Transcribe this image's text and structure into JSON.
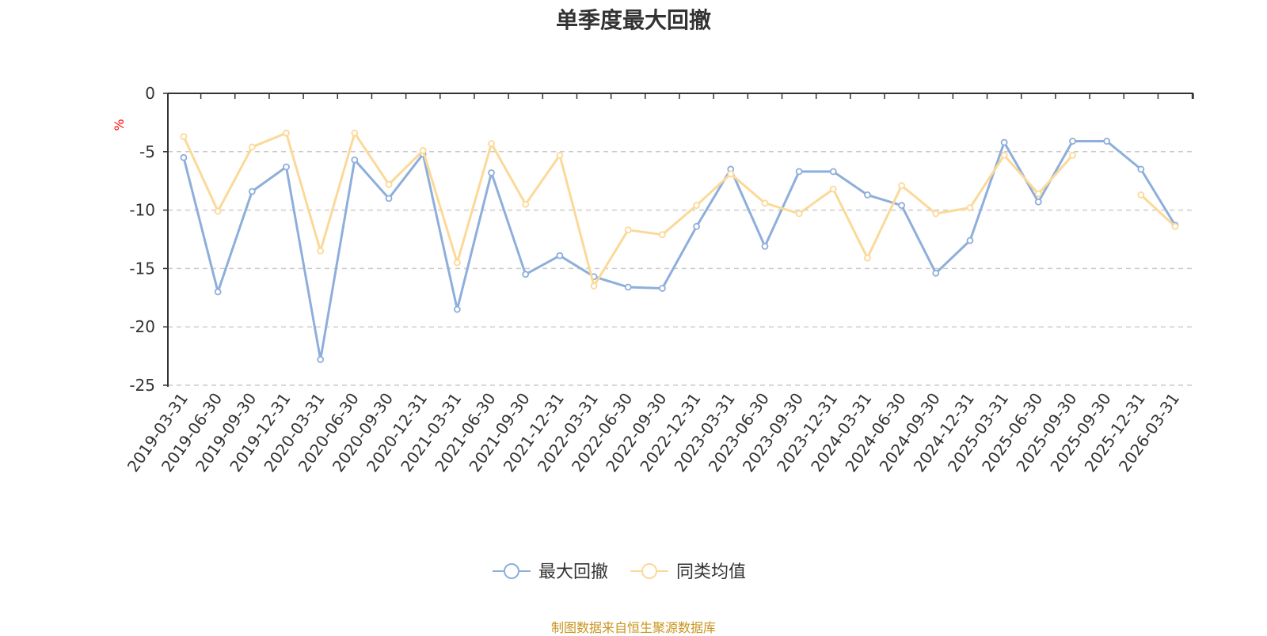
{
  "chart_data": {
    "type": "line",
    "title": "单季度最大回撤",
    "ylabel": "%",
    "xlabel": "",
    "ylim": [
      -25,
      0
    ],
    "yticks": [
      0,
      -5,
      -10,
      -15,
      -20,
      -25
    ],
    "ytick_labels": [
      "0",
      "-5",
      "-10",
      "-15",
      "-20",
      "-25"
    ],
    "grid": "horizontal dashed",
    "legend_position": "bottom-center",
    "categories": [
      "2019-03-31",
      "2019-06-30",
      "2019-09-30",
      "2019-12-31",
      "2020-03-31",
      "2020-06-30",
      "2020-09-30",
      "2020-12-31",
      "2021-03-31",
      "2021-06-30",
      "2021-09-30",
      "2021-12-31",
      "2022-03-31",
      "2022-06-30",
      "2022-09-30",
      "2022-12-31",
      "2023-03-31",
      "2023-06-30",
      "2023-09-30",
      "2023-12-31",
      "2024-03-31",
      "2024-06-30",
      "2024-09-30",
      "2024-12-31",
      "2025-03-31",
      "2025-06-30",
      "2025-09-30",
      "2025-09-30",
      "2025-12-31",
      "2026-03-31"
    ],
    "series": [
      {
        "name": "最大回撤",
        "color": "#8eaedb",
        "values": [
          -5.5,
          -17.0,
          -8.4,
          -6.3,
          -22.8,
          -5.7,
          -9.0,
          -5.2,
          -18.5,
          -6.8,
          -15.5,
          -13.9,
          -15.7,
          -16.6,
          -16.7,
          -11.4,
          -6.5,
          -13.1,
          -6.7,
          -6.7,
          -8.7,
          -9.6,
          -15.4,
          -12.6,
          -4.2,
          -9.3,
          -4.1,
          -4.1,
          -6.5,
          -11.3
        ]
      },
      {
        "name": "同类均值",
        "color": "#fbd998",
        "values": [
          -3.7,
          -10.1,
          -4.6,
          -3.4,
          -13.5,
          -3.4,
          -7.8,
          -4.9,
          -14.5,
          -4.3,
          -9.5,
          -5.3,
          -16.5,
          -11.7,
          -12.1,
          -9.6,
          -6.9,
          -9.4,
          -10.3,
          -8.2,
          -14.1,
          -7.9,
          -10.3,
          -9.8,
          -5.3,
          -8.6,
          -5.3,
          null,
          -8.7,
          -11.4
        ]
      }
    ]
  },
  "footer": {
    "source": "制图数据来自恒生聚源数据库"
  }
}
